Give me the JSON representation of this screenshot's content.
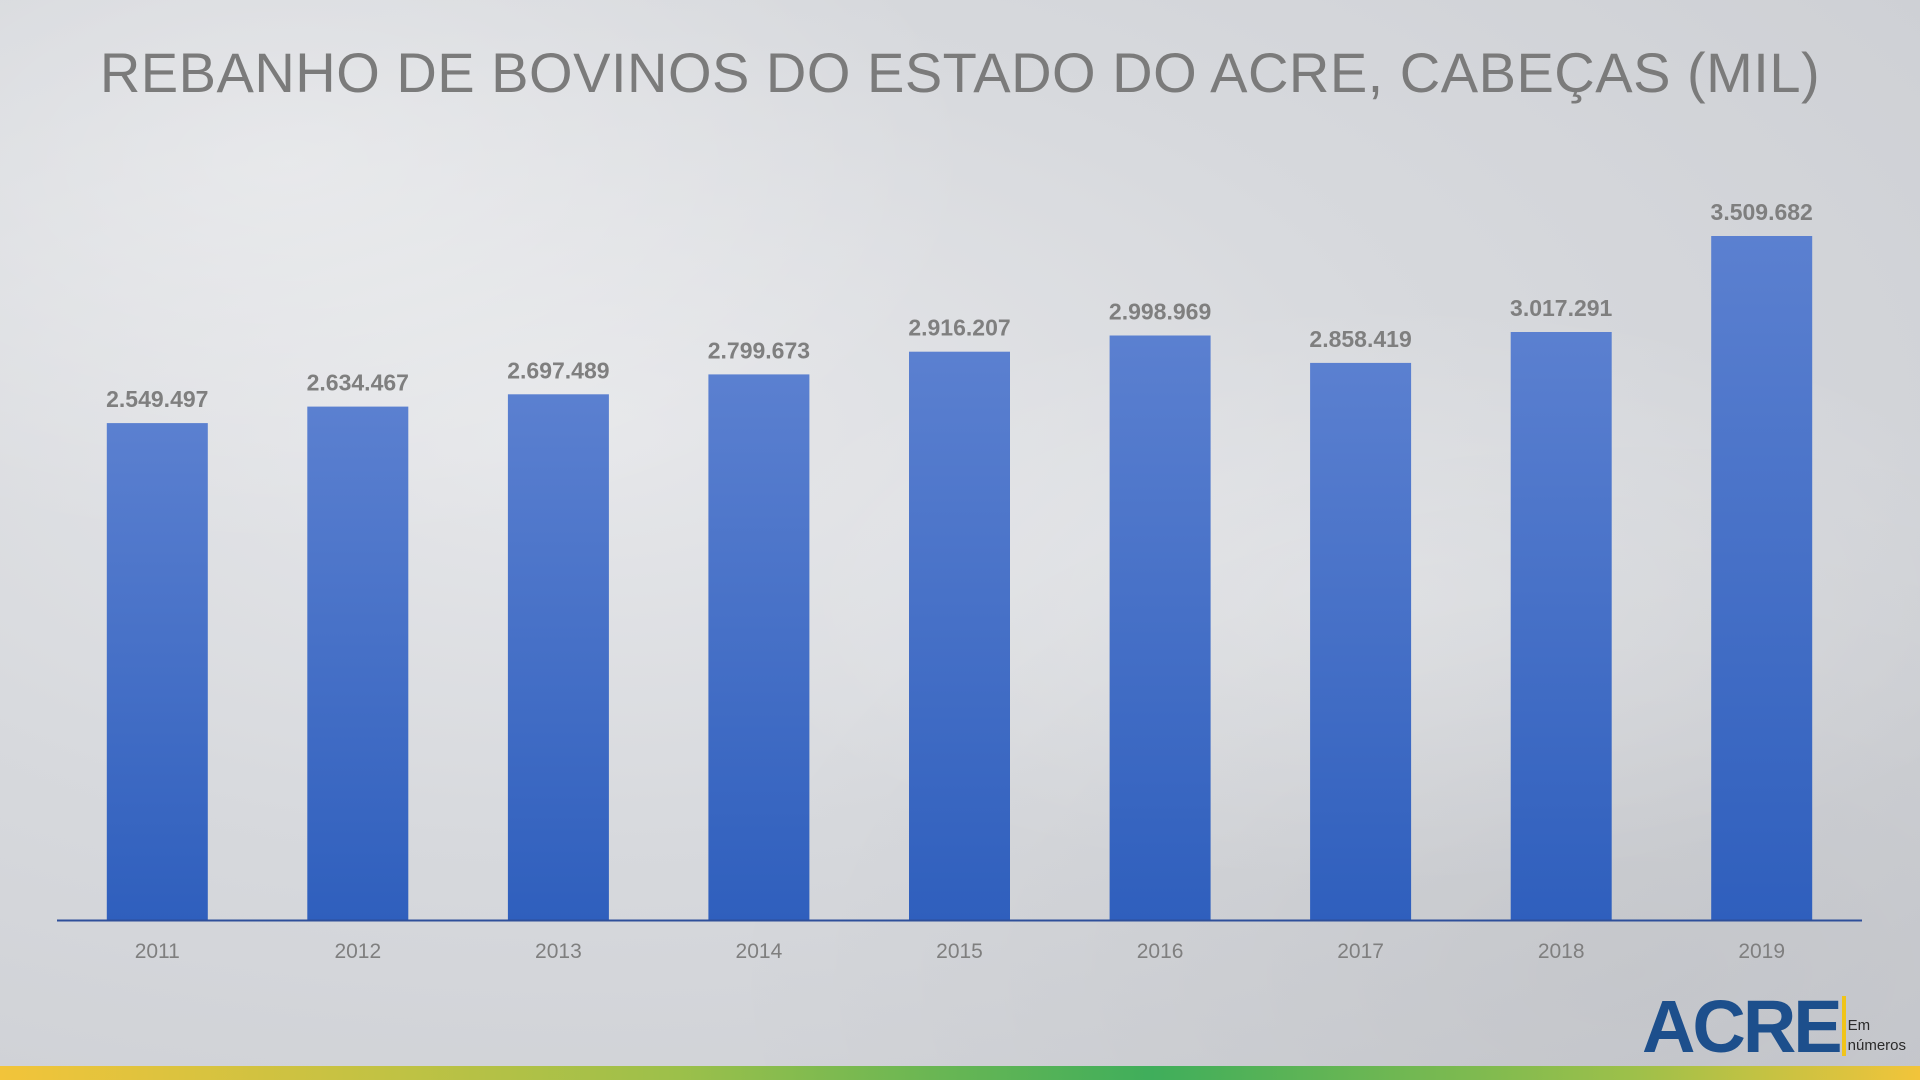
{
  "chart_data": {
    "type": "bar",
    "title": "REBANHO DE BOVINOS DO ESTADO DO ACRE, CABEÇAS (MIL)",
    "xlabel": "",
    "ylabel": "",
    "categories": [
      "2011",
      "2012",
      "2013",
      "2014",
      "2015",
      "2016",
      "2017",
      "2018",
      "2019"
    ],
    "values": [
      2549497,
      2634467,
      2697489,
      2799673,
      2916207,
      2998969,
      2858419,
      3017291,
      3509682
    ],
    "value_labels": [
      "2.549.497",
      "2.634.467",
      "2.697.489",
      "2.799.673",
      "2.916.207",
      "2.998.969",
      "2.858.419",
      "3.017.291",
      "3.509.682"
    ],
    "ylim": [
      0,
      3509682
    ],
    "grid": false,
    "bar_color_top": "#5b80d0",
    "bar_color_bottom": "#2f5fbd",
    "axis_color": "#2e4f9a"
  },
  "logo": {
    "main": "ACRE",
    "sub_line1": "Em",
    "sub_line2": "números"
  }
}
